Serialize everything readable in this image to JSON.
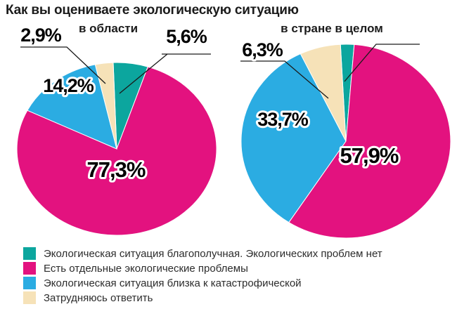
{
  "title": "Как вы оцениваете экологическую ситуацию",
  "colors": {
    "teal": "#0CA69E",
    "magenta": "#E3127F",
    "blue": "#2BACE2",
    "cream": "#F6E2B8"
  },
  "legend": [
    {
      "label": "Экологическая ситуация благополучная. Экологических проблем нет",
      "color": "#0CA69E"
    },
    {
      "label": "Есть отдельные экологические проблемы",
      "color": "#E3127F"
    },
    {
      "label": "Экологическая ситуация близка к катастрофической",
      "color": "#2BACE2"
    },
    {
      "label": "Затрудняюсь ответить",
      "color": "#F6E2B8"
    }
  ],
  "chart_data": [
    {
      "type": "pie",
      "title": "в области",
      "categories": [
        "Экологическая ситуация благополучная. Экологических проблем нет",
        "Есть отдельные экологические проблемы",
        "Экологическая ситуация близка к катастрофической",
        "Затрудняюсь ответить"
      ],
      "values": [
        5.6,
        77.3,
        14.2,
        2.9
      ],
      "slice_labels": [
        "5,6%",
        "77,3%",
        "14,2%",
        "2,9%"
      ],
      "colors": [
        "#0CA69E",
        "#E3127F",
        "#2BACE2",
        "#F6E2B8"
      ],
      "legend_position": "bottom-shared"
    },
    {
      "type": "pie",
      "title": "в стране в целом",
      "categories": [
        "Экологическая ситуация благополучная. Экологических проблем нет",
        "Есть отдельные экологические проблемы",
        "Экологическая ситуация близка к катастрофической",
        "Затрудняюсь ответить"
      ],
      "values": [
        2.1,
        57.9,
        33.7,
        6.3
      ],
      "slice_labels": [
        "",
        "57,9%",
        "33,7%",
        "6,3%"
      ],
      "colors": [
        "#0CA69E",
        "#E3127F",
        "#2BACE2",
        "#F6E2B8"
      ],
      "legend_position": "bottom-shared"
    }
  ]
}
